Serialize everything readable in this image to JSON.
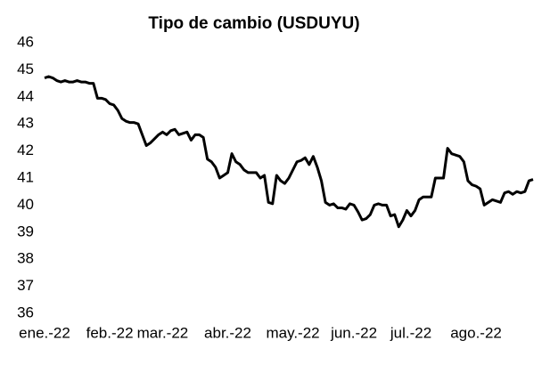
{
  "chart_data": {
    "type": "line",
    "title": "Tipo de cambio (USDUYU)",
    "series": [
      {
        "color": "#000000",
        "values": [
          44.7,
          44.75,
          44.7,
          44.6,
          44.55,
          44.6,
          44.55,
          44.55,
          44.6,
          44.55,
          44.55,
          44.5,
          44.5,
          43.95,
          43.95,
          43.9,
          43.75,
          43.7,
          43.5,
          43.2,
          43.1,
          43.05,
          43.05,
          43.0,
          42.6,
          42.2,
          42.3,
          42.45,
          42.6,
          42.7,
          42.6,
          42.75,
          42.8,
          42.6,
          42.65,
          42.7,
          42.4,
          42.6,
          42.6,
          42.5,
          41.7,
          41.6,
          41.4,
          41.0,
          41.1,
          41.2,
          41.9,
          41.6,
          41.5,
          41.3,
          41.2,
          41.2,
          41.2,
          41.0,
          41.1,
          40.1,
          40.05,
          41.1,
          40.9,
          40.8,
          41.0,
          41.3,
          41.6,
          41.65,
          41.75,
          41.5,
          41.8,
          41.4,
          40.9,
          40.1,
          40.0,
          40.05,
          39.9,
          39.9,
          39.85,
          40.05,
          40.0,
          39.75,
          39.45,
          39.5,
          39.65,
          40.0,
          40.05,
          40.0,
          40.0,
          39.6,
          39.65,
          39.2,
          39.45,
          39.8,
          39.6,
          39.8,
          40.2,
          40.3,
          40.3,
          40.3,
          41.0,
          41.0,
          41.0,
          42.1,
          41.9,
          41.85,
          41.8,
          41.6,
          40.9,
          40.75,
          40.7,
          40.6,
          40.0,
          40.1,
          40.2,
          40.15,
          40.1,
          40.45,
          40.5,
          40.4,
          40.5,
          40.45,
          40.5,
          40.9,
          40.95
        ]
      }
    ],
    "xlim": [
      0,
      120
    ],
    "xticks": [
      {
        "value": 0,
        "label": "ene.-22"
      },
      {
        "value": 16,
        "label": "feb.-22"
      },
      {
        "value": 29,
        "label": "mar.-22"
      },
      {
        "value": 45,
        "label": "abr.-22"
      },
      {
        "value": 61,
        "label": "may.-22"
      },
      {
        "value": 76,
        "label": "jun.-22"
      },
      {
        "value": 90,
        "label": "jul.-22"
      },
      {
        "value": 106,
        "label": "ago.-22"
      }
    ],
    "ylim": [
      36,
      46
    ],
    "yticks": [
      36,
      37,
      38,
      39,
      40,
      41,
      42,
      43,
      44,
      45,
      46
    ],
    "grid": false
  }
}
